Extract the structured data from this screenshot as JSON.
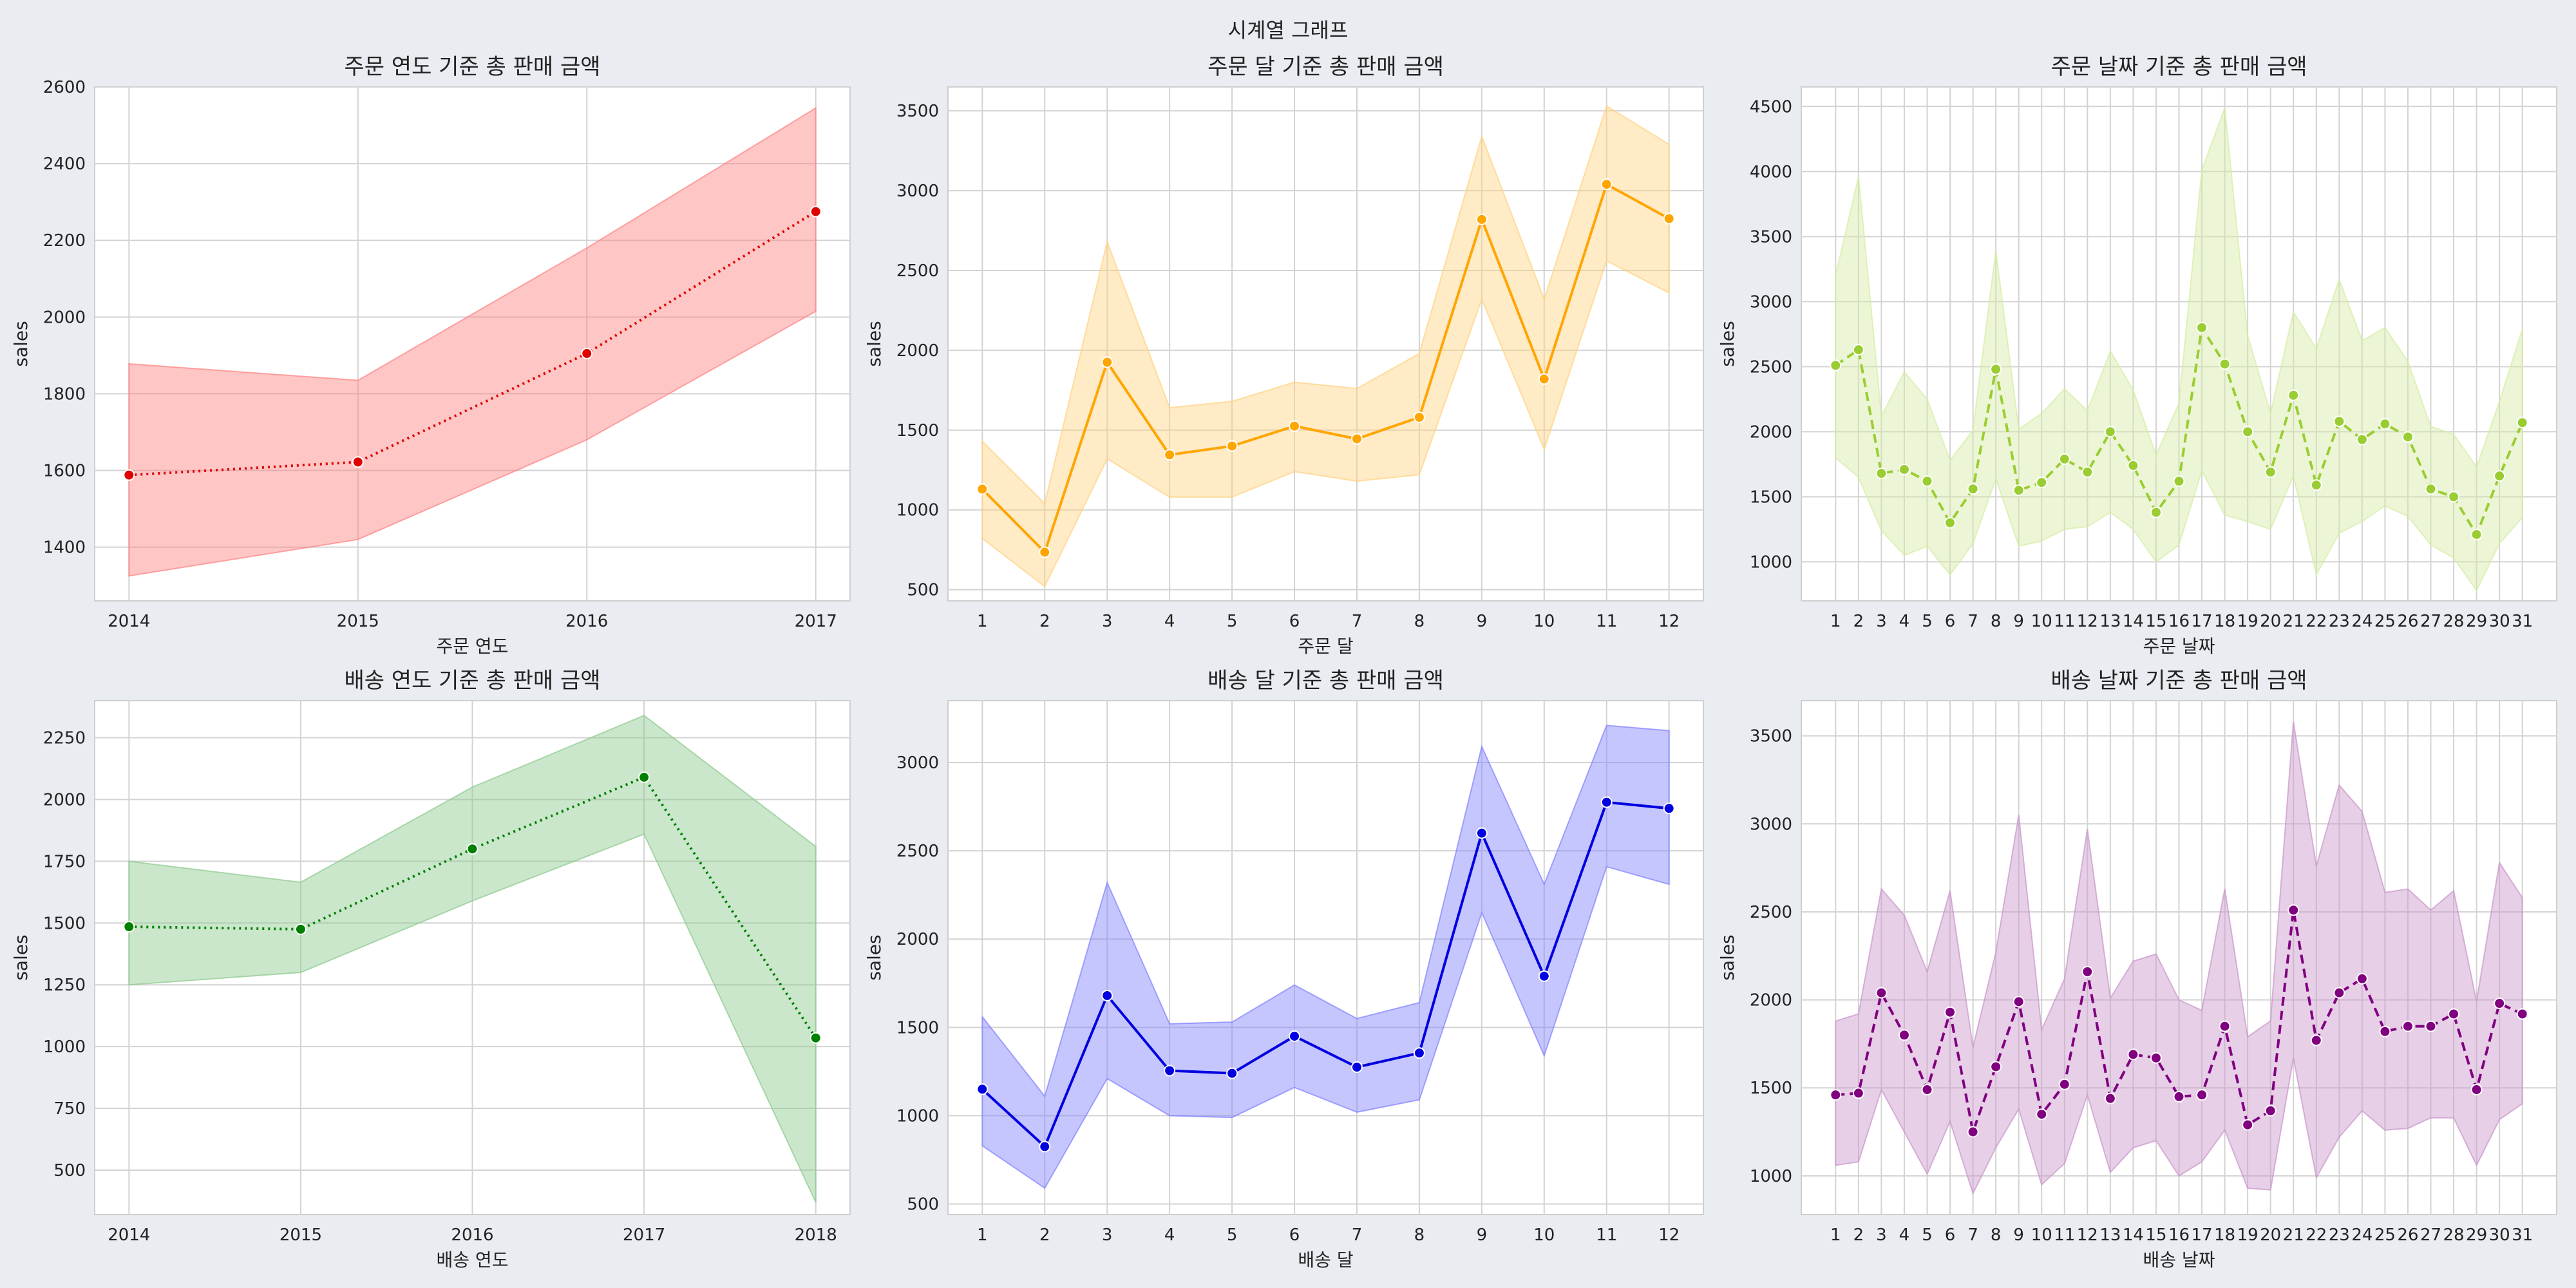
{
  "figure": {
    "suptitle": "시계열 그래프",
    "background": "#e9ecf1"
  },
  "chart_data": [
    {
      "type": "line",
      "title": "주문 연도 기준 총 판매 금액",
      "xlabel": "주문 연도",
      "ylabel": "sales",
      "color": "#e00000",
      "fill_color": "#ff8080",
      "line_style": "dotted",
      "x": [
        2014,
        2015,
        2016,
        2017
      ],
      "x_ticks": [
        "2014",
        "2015",
        "2016",
        "2017"
      ],
      "values": [
        1588,
        1622,
        1905,
        2275
      ],
      "lower": [
        1325,
        1420,
        1680,
        2015
      ],
      "upper": [
        1878,
        1835,
        2180,
        2545
      ],
      "ylim": [
        1260,
        2600
      ],
      "yticks": [
        1400,
        1600,
        1800,
        2000,
        2200,
        2400,
        2600
      ],
      "grid": true
    },
    {
      "type": "line",
      "title": "주문 달 기준 총 판매 금액",
      "xlabel": "주문 달",
      "ylabel": "sales",
      "color": "#ffa500",
      "fill_color": "#ffd27f",
      "line_style": "solid",
      "x": [
        1,
        2,
        3,
        4,
        5,
        6,
        7,
        8,
        9,
        10,
        11,
        12
      ],
      "x_ticks": [
        "1",
        "2",
        "3",
        "4",
        "5",
        "6",
        "7",
        "8",
        "9",
        "10",
        "11",
        "12"
      ],
      "values": [
        1130,
        735,
        1925,
        1345,
        1400,
        1525,
        1445,
        1580,
        2820,
        1820,
        3040,
        2825
      ],
      "lower": [
        820,
        520,
        1320,
        1080,
        1080,
        1240,
        1180,
        1220,
        2320,
        1380,
        2560,
        2360
      ],
      "upper": [
        1430,
        1040,
        2680,
        1640,
        1680,
        1800,
        1760,
        1980,
        3340,
        2320,
        3530,
        3290
      ],
      "ylim": [
        430,
        3650
      ],
      "yticks": [
        500,
        1000,
        1500,
        2000,
        2500,
        3000,
        3500
      ],
      "grid": true
    },
    {
      "type": "line",
      "title": "주문 날짜 기준 총 판매 금액",
      "xlabel": "주문 날짜",
      "ylabel": "sales",
      "color": "#9acd32",
      "fill_color": "#d4eca3",
      "line_style": "dashed",
      "x": [
        1,
        2,
        3,
        4,
        5,
        6,
        7,
        8,
        9,
        10,
        11,
        12,
        13,
        14,
        15,
        16,
        17,
        18,
        19,
        20,
        21,
        22,
        23,
        24,
        25,
        26,
        27,
        28,
        29,
        30,
        31
      ],
      "x_ticks": [
        "1",
        "2",
        "3",
        "4",
        "5",
        "6",
        "7",
        "8",
        "9",
        "10",
        "11",
        "12",
        "13",
        "14",
        "15",
        "16",
        "17",
        "18",
        "19",
        "20",
        "21",
        "22",
        "23",
        "24",
        "25",
        "26",
        "27",
        "28",
        "29",
        "30",
        "31"
      ],
      "values": [
        2510,
        2630,
        1680,
        1710,
        1620,
        1300,
        1560,
        2480,
        1550,
        1610,
        1790,
        1690,
        2000,
        1740,
        1380,
        1620,
        2800,
        2520,
        2000,
        1690,
        2280,
        1590,
        2080,
        1940,
        2060,
        1960,
        1560,
        1500,
        1210,
        1660,
        2070
      ],
      "lower": [
        1800,
        1650,
        1240,
        1050,
        1120,
        900,
        1140,
        1640,
        1120,
        1160,
        1250,
        1270,
        1380,
        1250,
        1000,
        1130,
        1700,
        1360,
        1310,
        1250,
        1660,
        900,
        1220,
        1310,
        1430,
        1350,
        1130,
        1030,
        780,
        1140,
        1340
      ],
      "upper": [
        3200,
        3960,
        2120,
        2460,
        2250,
        1780,
        2010,
        3390,
        2020,
        2140,
        2330,
        2160,
        2620,
        2320,
        1820,
        2220,
        4010,
        4490,
        2740,
        2140,
        2920,
        2640,
        3170,
        2700,
        2800,
        2540,
        2040,
        1980,
        1730,
        2230,
        2790
      ],
      "ylim": [
        700,
        4650
      ],
      "yticks": [
        1000,
        1500,
        2000,
        2500,
        3000,
        3500,
        4000,
        4500
      ],
      "grid": true
    },
    {
      "type": "line",
      "title": "배송 연도 기준 총 판매 금액",
      "xlabel": "배송 연도",
      "ylabel": "sales",
      "color": "#008000",
      "fill_color": "#8bc98b",
      "line_style": "dotted",
      "x": [
        2014,
        2015,
        2016,
        2017,
        2018
      ],
      "x_ticks": [
        "2014",
        "2015",
        "2016",
        "2017",
        "2018"
      ],
      "values": [
        1485,
        1475,
        1800,
        2090,
        1035
      ],
      "lower": [
        1250,
        1300,
        1590,
        1860,
        370
      ],
      "upper": [
        1750,
        1665,
        2050,
        2340,
        1810
      ],
      "ylim": [
        320,
        2400
      ],
      "yticks": [
        500,
        750,
        1000,
        1250,
        1500,
        1750,
        2000,
        2250
      ],
      "grid": true
    },
    {
      "type": "line",
      "title": "배송 달 기준 총 판매 금액",
      "xlabel": "배송 달",
      "ylabel": "sales",
      "color": "#0000e0",
      "fill_color": "#8080ff",
      "line_style": "solid",
      "x": [
        1,
        2,
        3,
        4,
        5,
        6,
        7,
        8,
        9,
        10,
        11,
        12
      ],
      "x_ticks": [
        "1",
        "2",
        "3",
        "4",
        "5",
        "6",
        "7",
        "8",
        "9",
        "10",
        "11",
        "12"
      ],
      "values": [
        1150,
        825,
        1680,
        1255,
        1240,
        1450,
        1275,
        1355,
        2600,
        1790,
        2775,
        2740
      ],
      "lower": [
        830,
        590,
        1210,
        1000,
        990,
        1160,
        1020,
        1090,
        2150,
        1340,
        2410,
        2310
      ],
      "upper": [
        1560,
        1110,
        2320,
        1520,
        1530,
        1740,
        1550,
        1640,
        3090,
        2310,
        3210,
        3180
      ],
      "ylim": [
        440,
        3350
      ],
      "yticks": [
        500,
        1000,
        1500,
        2000,
        2500,
        3000
      ],
      "grid": true
    },
    {
      "type": "line",
      "title": "배송 날짜 기준 총 판매 금액",
      "xlabel": "배송 날짜",
      "ylabel": "sales",
      "color": "#800080",
      "fill_color": "#c994c9",
      "line_style": "dashed",
      "x": [
        1,
        2,
        3,
        4,
        5,
        6,
        7,
        8,
        9,
        10,
        11,
        12,
        13,
        14,
        15,
        16,
        17,
        18,
        19,
        20,
        21,
        22,
        23,
        24,
        25,
        26,
        27,
        28,
        29,
        30,
        31
      ],
      "x_ticks": [
        "1",
        "2",
        "3",
        "4",
        "5",
        "6",
        "7",
        "8",
        "9",
        "10",
        "11",
        "12",
        "13",
        "14",
        "15",
        "16",
        "17",
        "18",
        "19",
        "20",
        "21",
        "22",
        "23",
        "24",
        "25",
        "26",
        "27",
        "28",
        "29",
        "30",
        "31"
      ],
      "values": [
        1460,
        1470,
        2040,
        1800,
        1490,
        1930,
        1250,
        1620,
        1990,
        1350,
        1520,
        2160,
        1440,
        1690,
        1670,
        1450,
        1460,
        1850,
        1290,
        1370,
        2510,
        1770,
        2040,
        2120,
        1820,
        1850,
        1850,
        1920,
        1490,
        1980,
        1920
      ],
      "lower": [
        1060,
        1080,
        1490,
        1250,
        1010,
        1310,
        900,
        1160,
        1380,
        950,
        1070,
        1460,
        1020,
        1160,
        1200,
        1000,
        1080,
        1260,
        930,
        920,
        1670,
        990,
        1220,
        1370,
        1260,
        1270,
        1330,
        1330,
        1060,
        1320,
        1410
      ],
      "upper": [
        1880,
        1920,
        2630,
        2480,
        2160,
        2620,
        1730,
        2270,
        3050,
        1830,
        2120,
        2970,
        2010,
        2220,
        2260,
        2000,
        1940,
        2630,
        1790,
        1880,
        3580,
        2760,
        3220,
        3070,
        2610,
        2630,
        2510,
        2620,
        1990,
        2780,
        2580
      ],
      "ylim": [
        780,
        3700
      ],
      "yticks": [
        1000,
        1500,
        2000,
        2500,
        3000,
        3500
      ],
      "grid": true
    }
  ]
}
